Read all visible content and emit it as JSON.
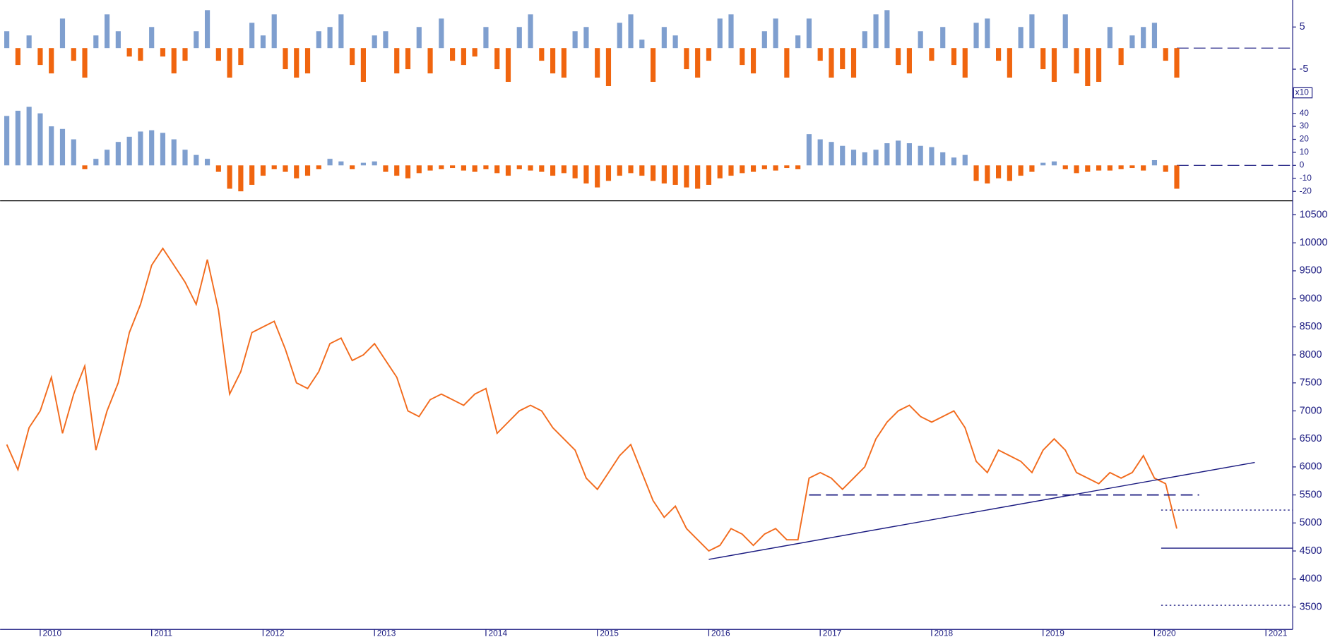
{
  "chart_data": [
    {
      "type": "bar",
      "pos_color": "#7f9fcf",
      "neg_color": "#f0650f",
      "xlim": [
        2009.64,
        2021.24
      ],
      "ylim": [
        -10,
        11.4
      ],
      "yticks": [
        5,
        -5
      ],
      "x": [
        2009.7,
        2009.8,
        2009.9,
        2010,
        2010.1,
        2010.2,
        2010.3,
        2010.4,
        2010.5,
        2010.6,
        2010.7,
        2010.8,
        2010.9,
        2011,
        2011.1,
        2011.2,
        2011.3,
        2011.4,
        2011.5,
        2011.6,
        2011.7,
        2011.8,
        2011.9,
        2012,
        2012.1,
        2012.2,
        2012.3,
        2012.4,
        2012.5,
        2012.6,
        2012.7,
        2012.8,
        2012.9,
        2013,
        2013.1,
        2013.2,
        2013.3,
        2013.4,
        2013.5,
        2013.6,
        2013.7,
        2013.8,
        2013.9,
        2014,
        2014.1,
        2014.2,
        2014.3,
        2014.4,
        2014.5,
        2014.6,
        2014.7,
        2014.8,
        2014.9,
        2015,
        2015.1,
        2015.2,
        2015.3,
        2015.4,
        2015.5,
        2015.6,
        2015.7,
        2015.8,
        2015.9,
        2016,
        2016.1,
        2016.2,
        2016.3,
        2016.4,
        2016.5,
        2016.6,
        2016.7,
        2016.8,
        2016.9,
        2017,
        2017.1,
        2017.2,
        2017.3,
        2017.4,
        2017.5,
        2017.6,
        2017.7,
        2017.8,
        2017.9,
        2018,
        2018.1,
        2018.2,
        2018.3,
        2018.4,
        2018.5,
        2018.6,
        2018.7,
        2018.8,
        2018.9,
        2019,
        2019.1,
        2019.2,
        2019.3,
        2019.4,
        2019.5,
        2019.6,
        2019.7,
        2019.8,
        2019.9,
        2020,
        2020.1,
        2020.2
      ],
      "values": [
        4,
        -4,
        3,
        -4,
        -6,
        7,
        -3,
        -7,
        3,
        8,
        4,
        -2,
        -3,
        5,
        -2,
        -6,
        -3,
        4,
        9,
        -3,
        -7,
        -4,
        6,
        3,
        8,
        -5,
        -7,
        -6,
        4,
        5,
        8,
        -4,
        -8,
        3,
        4,
        -6,
        -5,
        5,
        -6,
        7,
        -3,
        -4,
        -2,
        5,
        -5,
        -8,
        5,
        8,
        -3,
        -6,
        -7,
        4,
        5,
        -7,
        -9,
        6,
        8,
        2,
        -8,
        5,
        3,
        -5,
        -7,
        -3,
        7,
        8,
        -4,
        -6,
        4,
        7,
        -7,
        3,
        7,
        -3,
        -7,
        -5,
        -7,
        4,
        8,
        9,
        -4,
        -6,
        4,
        -3,
        5,
        -4,
        -7,
        6,
        7,
        -3,
        -7,
        5,
        8,
        -5,
        -8,
        8,
        -6,
        -9,
        -8,
        5,
        -4,
        3,
        5,
        6,
        -3,
        -7
      ]
    },
    {
      "type": "bar",
      "pos_color": "#7f9fcf",
      "neg_color": "#f0650f",
      "multiplier_label": "x10",
      "xlim": [
        2009.64,
        2021.24
      ],
      "ylim": [
        -27.3,
        50.6
      ],
      "yticks": [
        40,
        30,
        20,
        10,
        0,
        -10,
        -20
      ],
      "x": [
        2009.7,
        2009.8,
        2009.9,
        2010,
        2010.1,
        2010.2,
        2010.3,
        2010.4,
        2010.5,
        2010.6,
        2010.7,
        2010.8,
        2010.9,
        2011,
        2011.1,
        2011.2,
        2011.3,
        2011.4,
        2011.5,
        2011.6,
        2011.7,
        2011.8,
        2011.9,
        2012,
        2012.1,
        2012.2,
        2012.3,
        2012.4,
        2012.5,
        2012.6,
        2012.7,
        2012.8,
        2012.9,
        2013,
        2013.1,
        2013.2,
        2013.3,
        2013.4,
        2013.5,
        2013.6,
        2013.7,
        2013.8,
        2013.9,
        2014,
        2014.1,
        2014.2,
        2014.3,
        2014.4,
        2014.5,
        2014.6,
        2014.7,
        2014.8,
        2014.9,
        2015,
        2015.1,
        2015.2,
        2015.3,
        2015.4,
        2015.5,
        2015.6,
        2015.7,
        2015.8,
        2015.9,
        2016,
        2016.1,
        2016.2,
        2016.3,
        2016.4,
        2016.5,
        2016.6,
        2016.7,
        2016.8,
        2016.9,
        2017,
        2017.1,
        2017.2,
        2017.3,
        2017.4,
        2017.5,
        2017.6,
        2017.7,
        2017.8,
        2017.9,
        2018,
        2018.1,
        2018.2,
        2018.3,
        2018.4,
        2018.5,
        2018.6,
        2018.7,
        2018.8,
        2018.9,
        2019,
        2019.1,
        2019.2,
        2019.3,
        2019.4,
        2019.5,
        2019.6,
        2019.7,
        2019.8,
        2019.9,
        2020,
        2020.1,
        2020.2
      ],
      "values": [
        38,
        42,
        45,
        40,
        30,
        28,
        20,
        -3,
        5,
        12,
        18,
        22,
        26,
        27,
        25,
        20,
        12,
        8,
        5,
        -5,
        -18,
        -20,
        -15,
        -8,
        -3,
        -5,
        -10,
        -8,
        -3,
        5,
        3,
        -3,
        2,
        3,
        -5,
        -8,
        -10,
        -6,
        -4,
        -3,
        -2,
        -4,
        -5,
        -3,
        -6,
        -8,
        -3,
        -4,
        -5,
        -8,
        -6,
        -10,
        -14,
        -17,
        -12,
        -8,
        -6,
        -8,
        -12,
        -14,
        -15,
        -17,
        -18,
        -15,
        -10,
        -8,
        -6,
        -5,
        -3,
        -4,
        -2,
        -3,
        24,
        20,
        18,
        15,
        12,
        10,
        12,
        17,
        19,
        17,
        15,
        14,
        10,
        6,
        8,
        -12,
        -14,
        -10,
        -12,
        -8,
        -5,
        2,
        3,
        -3,
        -6,
        -5,
        -4,
        -4,
        -3,
        -2,
        -4,
        4,
        -5,
        -18
      ]
    },
    {
      "type": "line",
      "color": "#f26b1d",
      "xlim": [
        2009.64,
        2021.24
      ],
      "ylim": [
        3100,
        10750
      ],
      "xticks": [
        2010,
        2011,
        2012,
        2013,
        2014,
        2015,
        2016,
        2017,
        2018,
        2019,
        2020,
        2021
      ],
      "yticks": [
        10500,
        10000,
        9500,
        9000,
        8500,
        8000,
        7500,
        7000,
        6500,
        6000,
        5500,
        5000,
        4500,
        4000,
        3500
      ],
      "x": [
        2009.7,
        2009.8,
        2009.9,
        2010,
        2010.1,
        2010.2,
        2010.3,
        2010.4,
        2010.5,
        2010.6,
        2010.7,
        2010.8,
        2010.9,
        2011,
        2011.1,
        2011.2,
        2011.3,
        2011.4,
        2011.5,
        2011.6,
        2011.7,
        2011.8,
        2011.9,
        2012,
        2012.1,
        2012.2,
        2012.3,
        2012.4,
        2012.5,
        2012.6,
        2012.7,
        2012.8,
        2012.9,
        2013,
        2013.1,
        2013.2,
        2013.3,
        2013.4,
        2013.5,
        2013.6,
        2013.7,
        2013.8,
        2013.9,
        2014,
        2014.1,
        2014.2,
        2014.3,
        2014.4,
        2014.5,
        2014.6,
        2014.7,
        2014.8,
        2014.9,
        2015,
        2015.1,
        2015.2,
        2015.3,
        2015.4,
        2015.5,
        2015.6,
        2015.7,
        2015.8,
        2015.9,
        2016,
        2016.1,
        2016.2,
        2016.3,
        2016.4,
        2016.5,
        2016.6,
        2016.7,
        2016.8,
        2016.9,
        2017,
        2017.1,
        2017.2,
        2017.3,
        2017.4,
        2017.5,
        2017.6,
        2017.7,
        2017.8,
        2017.9,
        2018,
        2018.1,
        2018.2,
        2018.3,
        2018.4,
        2018.5,
        2018.6,
        2018.7,
        2018.8,
        2018.9,
        2019,
        2019.1,
        2019.2,
        2019.3,
        2019.4,
        2019.5,
        2019.6,
        2019.7,
        2019.8,
        2019.9,
        2020,
        2020.1,
        2020.2
      ],
      "values": [
        6400,
        5950,
        6700,
        7000,
        7600,
        6600,
        7300,
        7800,
        6300,
        7000,
        7500,
        8400,
        8900,
        9600,
        9900,
        9600,
        9300,
        8900,
        9700,
        8800,
        7300,
        7700,
        8400,
        8500,
        8600,
        8100,
        7500,
        7400,
        7700,
        8200,
        8300,
        7900,
        8000,
        8200,
        7900,
        7600,
        7000,
        6900,
        7200,
        7300,
        7200,
        7100,
        7300,
        7400,
        6600,
        6800,
        7000,
        7100,
        7000,
        6700,
        6500,
        6300,
        5800,
        5600,
        5900,
        6200,
        6400,
        5900,
        5400,
        5100,
        5300,
        4900,
        4700,
        4500,
        4600,
        4900,
        4800,
        4600,
        4800,
        4900,
        4700,
        4700,
        5800,
        5900,
        5800,
        5600,
        5800,
        6000,
        6500,
        6800,
        7000,
        7100,
        6900,
        6800,
        6900,
        7000,
        6700,
        6100,
        5900,
        6300,
        6200,
        6100,
        5900,
        6300,
        6500,
        6300,
        5900,
        5800,
        5700,
        5900,
        5800,
        5900,
        6200,
        5800,
        5700,
        4900
      ],
      "lines": [
        {
          "style": "solid",
          "color": "#1a1a80",
          "x": [
            2016.0,
            2020.9
          ],
          "y": [
            4350,
            6080
          ]
        },
        {
          "style": "dashed",
          "color": "#1a1a80",
          "x": [
            2016.9,
            2020.4
          ],
          "y": [
            5500,
            5500
          ]
        },
        {
          "style": "dotted",
          "color": "#1a1a80",
          "x": [
            2020.06,
            2021.24
          ],
          "y": [
            5230,
            5230
          ]
        },
        {
          "style": "solid",
          "color": "#1a1a80",
          "x": [
            2020.06,
            2021.24
          ],
          "y": [
            4550,
            4550
          ]
        },
        {
          "style": "dotted",
          "color": "#1a1a80",
          "x": [
            2020.06,
            2021.24
          ],
          "y": [
            3530,
            3530
          ]
        }
      ]
    }
  ]
}
